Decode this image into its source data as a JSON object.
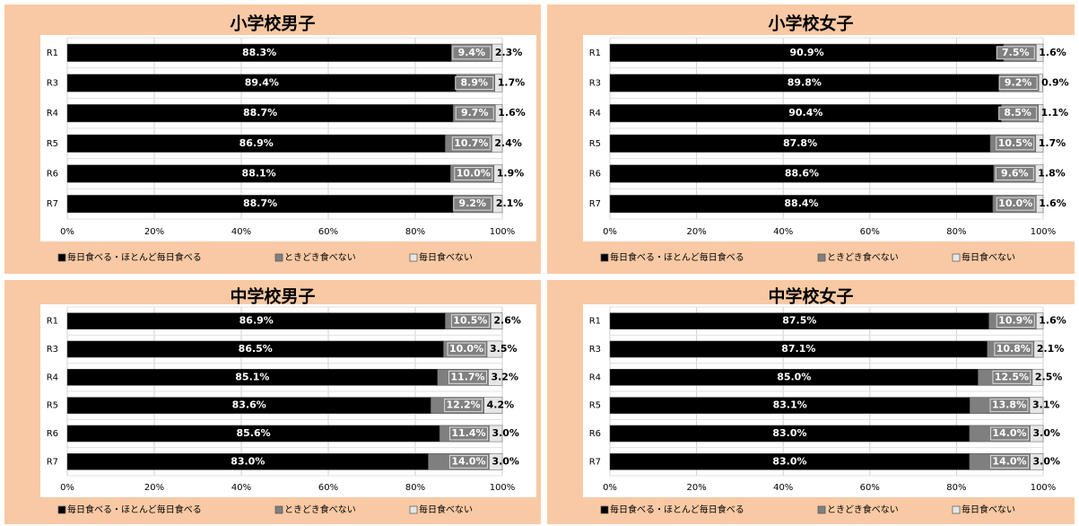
{
  "chart_data": [
    {
      "type": "stacked-barh",
      "title": "小学校男子",
      "categories": [
        "R1",
        "R3",
        "R4",
        "R5",
        "R6",
        "R7"
      ],
      "series": [
        {
          "name": "毎日食べる・ほとんど毎日食べる",
          "color": "#000000",
          "values": [
            88.3,
            89.4,
            88.7,
            86.9,
            88.1,
            88.7
          ],
          "value_labels": [
            "88.3%",
            "89.4%",
            "88.7%",
            "86.9%",
            "88.1%",
            "88.7%"
          ]
        },
        {
          "name": "ときどき食べない",
          "color": "#7f7f7f",
          "values": [
            9.4,
            8.9,
            9.7,
            10.7,
            10.0,
            9.2
          ],
          "value_labels": [
            "9.4%",
            "8.9%",
            "9.7%",
            "10.7%",
            "10.0%",
            "9.2%"
          ]
        },
        {
          "name": "毎日食べない",
          "color": "#e6e6e6",
          "values": [
            2.3,
            1.7,
            1.6,
            2.4,
            1.9,
            2.1
          ],
          "value_labels": [
            "2.3%",
            "1.7%",
            "1.6%",
            "2.4%",
            "1.9%",
            "2.1%"
          ]
        }
      ],
      "xlim": [
        0,
        100
      ],
      "xticks": [
        {
          "value": 0,
          "label": "0%"
        },
        {
          "value": 20,
          "label": "20%"
        },
        {
          "value": 40,
          "label": "40%"
        },
        {
          "value": 60,
          "label": "60%"
        },
        {
          "value": 80,
          "label": "80%"
        },
        {
          "value": 100,
          "label": "100%"
        }
      ],
      "grid": true,
      "legend": "bottom"
    },
    {
      "type": "stacked-barh",
      "title": "小学校女子",
      "categories": [
        "R1",
        "R3",
        "R4",
        "R5",
        "R6",
        "R7"
      ],
      "series": [
        {
          "name": "毎日食べる・ほとんど毎日食べる",
          "color": "#000000",
          "values": [
            90.9,
            89.8,
            90.4,
            87.8,
            88.6,
            88.4
          ],
          "value_labels": [
            "90.9%",
            "89.8%",
            "90.4%",
            "87.8%",
            "88.6%",
            "88.4%"
          ]
        },
        {
          "name": "ときどき食べない",
          "color": "#7f7f7f",
          "values": [
            7.5,
            9.2,
            8.5,
            10.5,
            9.6,
            10.0
          ],
          "value_labels": [
            "7.5%",
            "9.2%",
            "8.5%",
            "10.5%",
            "9.6%",
            "10.0%"
          ]
        },
        {
          "name": "毎日食べない",
          "color": "#e6e6e6",
          "values": [
            1.6,
            0.9,
            1.1,
            1.7,
            1.8,
            1.6
          ],
          "value_labels": [
            "1.6%",
            "0.9%",
            "1.1%",
            "1.7%",
            "1.8%",
            "1.6%"
          ]
        }
      ],
      "xlim": [
        0,
        100
      ],
      "xticks": [
        {
          "value": 0,
          "label": "0%"
        },
        {
          "value": 20,
          "label": "20%"
        },
        {
          "value": 40,
          "label": "40%"
        },
        {
          "value": 60,
          "label": "60%"
        },
        {
          "value": 80,
          "label": "80%"
        },
        {
          "value": 100,
          "label": "100%"
        }
      ],
      "grid": true,
      "legend": "bottom"
    },
    {
      "type": "stacked-barh",
      "title": "中学校男子",
      "categories": [
        "R1",
        "R3",
        "R4",
        "R5",
        "R6",
        "R7"
      ],
      "series": [
        {
          "name": "毎日食べる・ほとんど毎日食べる",
          "color": "#000000",
          "values": [
            86.9,
            86.5,
            85.1,
            83.6,
            85.6,
            83.0
          ],
          "value_labels": [
            "86.9%",
            "86.5%",
            "85.1%",
            "83.6%",
            "85.6%",
            "83.0%"
          ]
        },
        {
          "name": "ときどき食べない",
          "color": "#7f7f7f",
          "values": [
            10.5,
            10.0,
            11.7,
            12.2,
            11.4,
            14.0
          ],
          "value_labels": [
            "10.5%",
            "10.0%",
            "11.7%",
            "12.2%",
            "11.4%",
            "14.0%"
          ]
        },
        {
          "name": "毎日食べない",
          "color": "#e6e6e6",
          "values": [
            2.6,
            3.5,
            3.2,
            4.2,
            3.0,
            3.0
          ],
          "value_labels": [
            "2.6%",
            "3.5%",
            "3.2%",
            "4.2%",
            "3.0%",
            "3.0%"
          ]
        }
      ],
      "xlim": [
        0,
        100
      ],
      "xticks": [
        {
          "value": 0,
          "label": "0%"
        },
        {
          "value": 20,
          "label": "20%"
        },
        {
          "value": 40,
          "label": "40%"
        },
        {
          "value": 60,
          "label": "60%"
        },
        {
          "value": 80,
          "label": "80%"
        },
        {
          "value": 100,
          "label": "100%"
        }
      ],
      "grid": true,
      "legend": "bottom"
    },
    {
      "type": "stacked-barh",
      "title": "中学校女子",
      "categories": [
        "R1",
        "R3",
        "R4",
        "R5",
        "R6",
        "R7"
      ],
      "series": [
        {
          "name": "毎日食べる・ほとんど毎日食べる",
          "color": "#000000",
          "values": [
            87.5,
            87.1,
            85.0,
            83.1,
            83.0,
            83.0
          ],
          "value_labels": [
            "87.5%",
            "87.1%",
            "85.0%",
            "83.1%",
            "83.0%",
            "83.0%"
          ]
        },
        {
          "name": "ときどき食べない",
          "color": "#7f7f7f",
          "values": [
            10.9,
            10.8,
            12.5,
            13.8,
            14.0,
            14.0
          ],
          "value_labels": [
            "10.9%",
            "10.8%",
            "12.5%",
            "13.8%",
            "14.0%",
            "14.0%"
          ]
        },
        {
          "name": "毎日食べない",
          "color": "#e6e6e6",
          "values": [
            1.6,
            2.1,
            2.5,
            3.1,
            3.0,
            3.0
          ],
          "value_labels": [
            "1.6%",
            "2.1%",
            "2.5%",
            "3.1%",
            "3.0%",
            "3.0%"
          ]
        }
      ],
      "xlim": [
        0,
        100
      ],
      "xticks": [
        {
          "value": 0,
          "label": "0%"
        },
        {
          "value": 20,
          "label": "20%"
        },
        {
          "value": 40,
          "label": "40%"
        },
        {
          "value": 60,
          "label": "60%"
        },
        {
          "value": 80,
          "label": "80%"
        },
        {
          "value": 100,
          "label": "100%"
        }
      ],
      "grid": true,
      "legend": "bottom"
    }
  ]
}
